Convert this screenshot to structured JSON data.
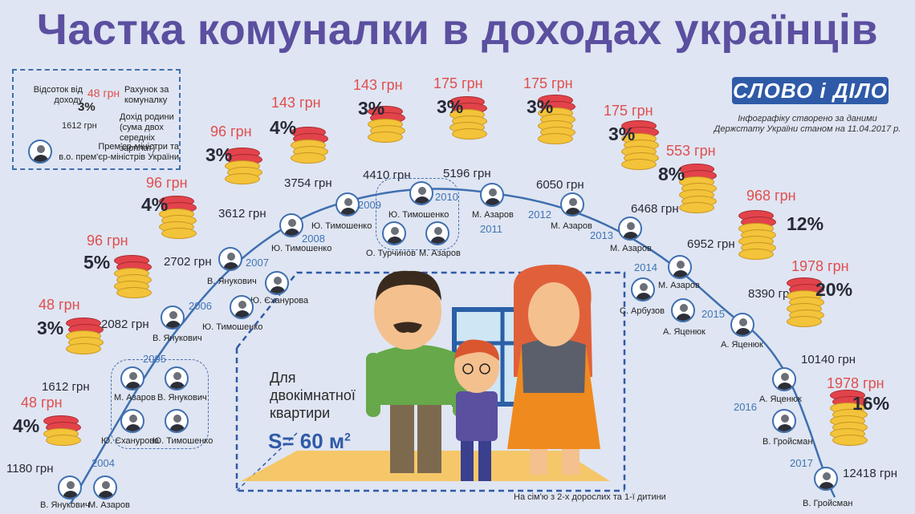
{
  "title": "Частка комуналки в доходах українців",
  "brand": "СЛОВО і ДІЛО",
  "source_note": [
    "Інфографіку створено за даними",
    "Держстату України станом на 11.04.2017 р."
  ],
  "legend": {
    "percent_label": [
      "Відсоток від",
      "доходу"
    ],
    "bill_value": "48 грн",
    "percent_value": "3%",
    "bill_label": [
      "Рахунок за",
      "комуналку"
    ],
    "income_value": "1612 грн",
    "income_label": [
      "Дохід родини",
      "(сума двох",
      "середніх зарплат)"
    ],
    "pm_label": [
      "Прем'єр-міністри та",
      "в.о. прем'єр-міністрів України"
    ]
  },
  "apartment": {
    "caption": [
      "Для",
      "двокімнатної",
      "квартири"
    ],
    "area": "S= 60 м",
    "area_sup": "2",
    "family_note": "На сім'ю з 2-х дорослих та 1-ї дитини"
  },
  "points": [
    {
      "bill": "48 грн",
      "pct": "4%",
      "income": "1180 грн"
    },
    {
      "bill": "48 грн",
      "pct": "3%",
      "income": "1612 грн"
    },
    {
      "bill": "96 грн",
      "pct": "5%",
      "income": "2082 грн"
    },
    {
      "bill": "96 грн",
      "pct": "4%",
      "income": "2702 грн"
    },
    {
      "bill": "96 грн",
      "pct": "3%",
      "income": "3612 грн"
    },
    {
      "bill": "143 грн",
      "pct": "4%",
      "income": "3754 грн"
    },
    {
      "bill": "143 грн",
      "pct": "3%",
      "income": "4410 грн"
    },
    {
      "bill": "175 грн",
      "pct": "3%",
      "income": "5196 грн"
    },
    {
      "bill": "175 грн",
      "pct": "3%",
      "income": "6050 грн"
    },
    {
      "bill": "175 грн",
      "pct": "3%",
      "income": "6468 грн"
    },
    {
      "bill": "553 грн",
      "pct": "8%",
      "income": "6952 грн"
    },
    {
      "bill": "968 грн",
      "pct": "12%",
      "income": "8390 грн"
    },
    {
      "bill": "1978 грн",
      "pct": "20%",
      "income": "10140 грн"
    },
    {
      "bill": "1978 грн",
      "pct": "16%",
      "income": "12418 грн"
    }
  ],
  "years": [
    "2004",
    "2005",
    "2006",
    "2007",
    "2008",
    "2009",
    "2010",
    "2011",
    "2012",
    "2013",
    "2014",
    "2015",
    "2016",
    "2017"
  ],
  "pms": {
    "yanukovych": "В. Янукович",
    "azarov": "М. Азаров",
    "yekhanurov": "Ю. Єханурова",
    "yekhanurov_b": "Ю. Єханурова",
    "tymoshenko": "Ю. Тимошенко",
    "turchynov": "О. Турчинов",
    "arbuzov": "С. Арбузов",
    "yatseniuk": "А. Яценюк",
    "hroisman": "В. Гройсман"
  }
}
